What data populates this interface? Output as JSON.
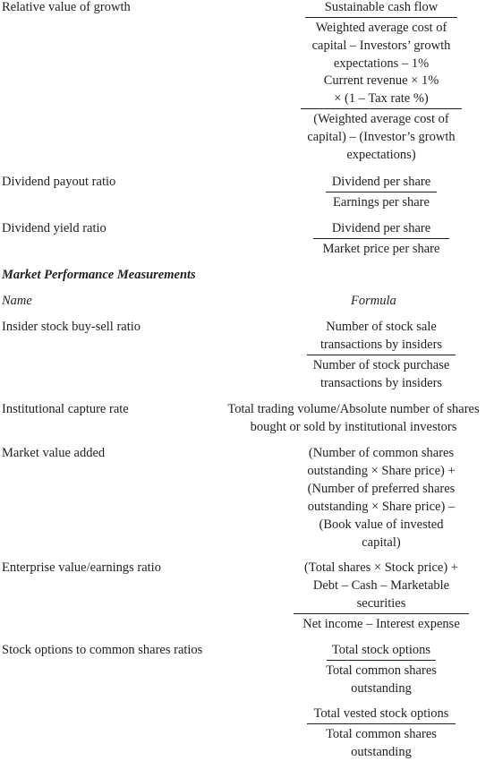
{
  "rows_top": [
    {
      "name": "Relative value of growth",
      "fractions": [
        {
          "num": [
            "Sustainable cash flow"
          ],
          "den": [
            "Weighted average cost of",
            "capital – Investors’ growth",
            "expectations – 1%"
          ]
        },
        {
          "num": [
            "Current revenue × 1%",
            "× (1 – Tax rate %)"
          ],
          "den": [
            "(Weighted average cost of",
            "capital) – (Investor’s growth",
            "expectations)"
          ]
        }
      ]
    },
    {
      "name": "Dividend payout ratio",
      "fractions": [
        {
          "num": [
            "Dividend per share"
          ],
          "den": [
            "Earnings per share"
          ]
        }
      ]
    },
    {
      "name": "Dividend yield ratio",
      "fractions": [
        {
          "num": [
            "Dividend per share"
          ],
          "den": [
            "Market price per share"
          ]
        }
      ]
    }
  ],
  "section": {
    "heading": "Market Performance Measurements",
    "name_col": "Name",
    "formula_col": "Formula"
  },
  "rows_market": [
    {
      "name": "Insider stock buy-sell ratio",
      "fractions": [
        {
          "num": [
            "Number of stock sale",
            "transactions by insiders"
          ],
          "den": [
            "Number of stock purchase",
            "transactions by insiders"
          ]
        }
      ]
    },
    {
      "name": "Institutional capture rate",
      "plain": [
        "Total trading volume/Absolute number of shares",
        "bought or sold by institutional investors"
      ]
    },
    {
      "name": "Market value added",
      "plain": [
        "(Number of common shares",
        "outstanding ×  Share price) +",
        "(Number of preferred shares",
        "outstanding × Share price) –",
        "(Book value of invested",
        "capital)"
      ]
    },
    {
      "name": "Enterprise value/earnings ratio",
      "fractions": [
        {
          "num": [
            "(Total shares × Stock price) +",
            "Debt – Cash – Marketable",
            "securities"
          ],
          "den": [
            "Net income – Interest expense"
          ]
        }
      ]
    },
    {
      "name": "Stock options to common shares ratios",
      "fractions": [
        {
          "num": [
            "Total stock options"
          ],
          "den": [
            "Total common shares",
            "outstanding"
          ]
        },
        {
          "num": [
            "Total vested stock options"
          ],
          "den": [
            "Total common shares",
            "outstanding"
          ]
        }
      ]
    }
  ]
}
